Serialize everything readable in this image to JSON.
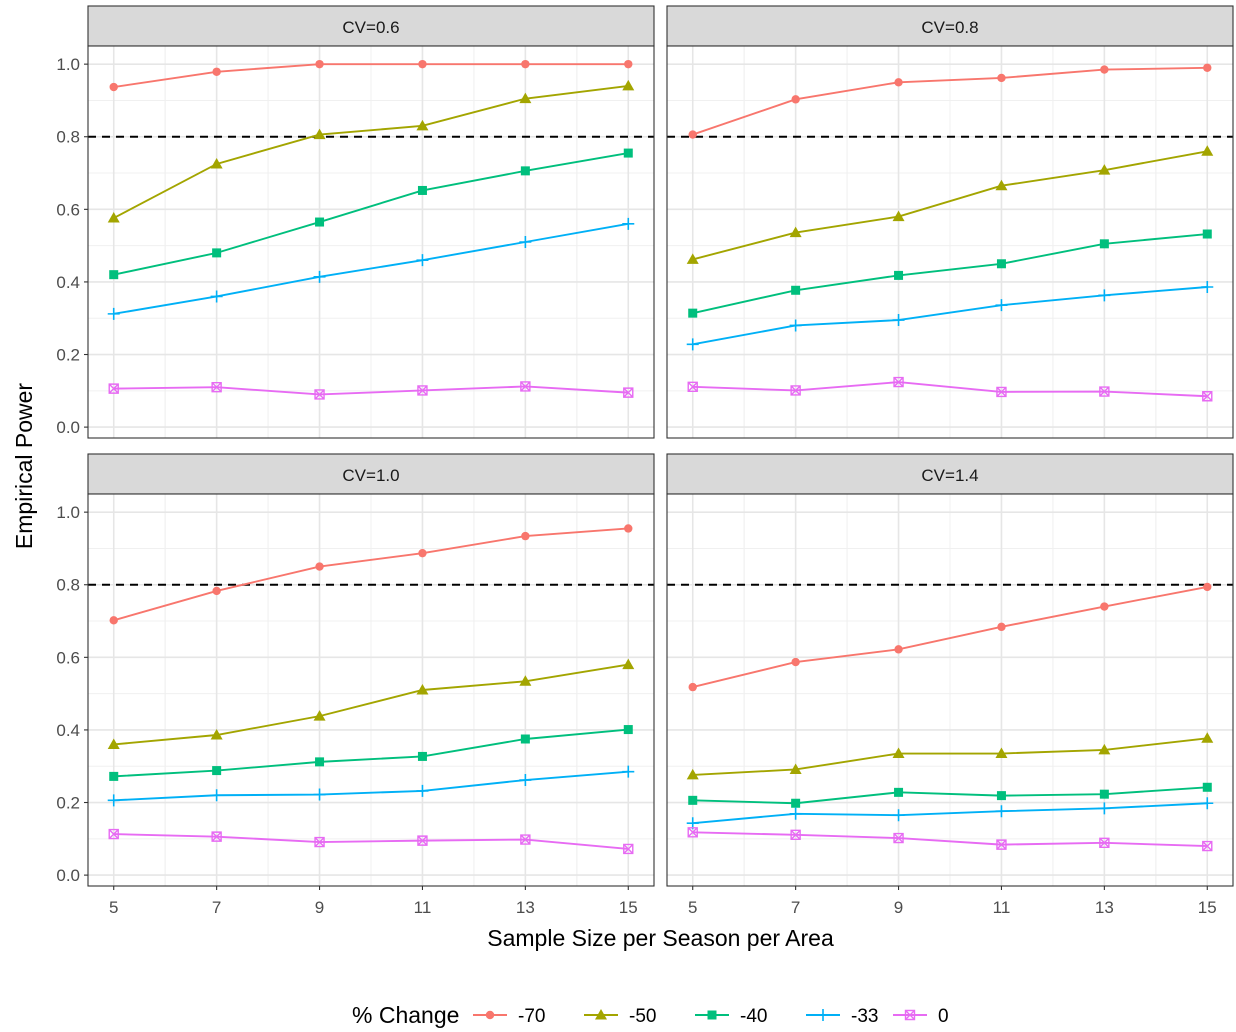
{
  "chart_data": {
    "type": "line",
    "xlabel": "Sample Size per Season per Area",
    "ylabel": "Empirical Power",
    "x": [
      5,
      7,
      9,
      11,
      13,
      15
    ],
    "xticks": [
      "5",
      "7",
      "9",
      "11",
      "13",
      "15"
    ],
    "yticks": [
      "0.0",
      "0.2",
      "0.4",
      "0.6",
      "0.8",
      "1.0"
    ],
    "ylim": [
      -0.03,
      1.05
    ],
    "xlim": [
      4.5,
      15.5
    ],
    "reference_line": {
      "y": 0.8,
      "style": "dashed",
      "color": "#000000"
    },
    "grid": true,
    "legend": {
      "title": "% Change",
      "position": "bottom",
      "entries": [
        {
          "label": "-70",
          "color": "#F8766D",
          "shape": "circle"
        },
        {
          "label": "-50",
          "color": "#A3A500",
          "shape": "triangle"
        },
        {
          "label": "-40",
          "color": "#00BF7D",
          "shape": "square"
        },
        {
          "label": "-33",
          "color": "#00B0F6",
          "shape": "plus"
        },
        {
          "label": "0",
          "color": "#E76BF3",
          "shape": "square-x"
        }
      ]
    },
    "panels": [
      {
        "title": "CV=0.6",
        "series": [
          {
            "name": "-70",
            "values": [
              0.937,
              0.979,
              1.0,
              1.0,
              1.0,
              1.0
            ]
          },
          {
            "name": "-50",
            "values": [
              0.576,
              0.725,
              0.806,
              0.83,
              0.905,
              0.94
            ]
          },
          {
            "name": "-40",
            "values": [
              0.42,
              0.48,
              0.565,
              0.652,
              0.706,
              0.755
            ]
          },
          {
            "name": "-33",
            "values": [
              0.312,
              0.36,
              0.414,
              0.46,
              0.51,
              0.56
            ]
          },
          {
            "name": "0",
            "values": [
              0.106,
              0.11,
              0.09,
              0.101,
              0.112,
              0.095
            ]
          }
        ]
      },
      {
        "title": "CV=0.8",
        "series": [
          {
            "name": "-70",
            "values": [
              0.806,
              0.903,
              0.95,
              0.962,
              0.985,
              0.99
            ]
          },
          {
            "name": "-50",
            "values": [
              0.462,
              0.536,
              0.58,
              0.665,
              0.708,
              0.76
            ]
          },
          {
            "name": "-40",
            "values": [
              0.314,
              0.377,
              0.418,
              0.45,
              0.505,
              0.532
            ]
          },
          {
            "name": "-33",
            "values": [
              0.228,
              0.28,
              0.295,
              0.336,
              0.363,
              0.386
            ]
          },
          {
            "name": "0",
            "values": [
              0.111,
              0.101,
              0.124,
              0.097,
              0.098,
              0.085
            ]
          }
        ]
      },
      {
        "title": "CV=1.0",
        "series": [
          {
            "name": "-70",
            "values": [
              0.702,
              0.783,
              0.85,
              0.887,
              0.934,
              0.955
            ]
          },
          {
            "name": "-50",
            "values": [
              0.36,
              0.386,
              0.438,
              0.51,
              0.534,
              0.58
            ]
          },
          {
            "name": "-40",
            "values": [
              0.272,
              0.288,
              0.312,
              0.327,
              0.375,
              0.401
            ]
          },
          {
            "name": "-33",
            "values": [
              0.206,
              0.22,
              0.222,
              0.232,
              0.262,
              0.285
            ]
          },
          {
            "name": "0",
            "values": [
              0.113,
              0.106,
              0.091,
              0.095,
              0.098,
              0.072
            ]
          }
        ]
      },
      {
        "title": "CV=1.4",
        "series": [
          {
            "name": "-70",
            "values": [
              0.518,
              0.587,
              0.622,
              0.684,
              0.74,
              0.794
            ]
          },
          {
            "name": "-50",
            "values": [
              0.276,
              0.291,
              0.335,
              0.335,
              0.345,
              0.377
            ]
          },
          {
            "name": "-40",
            "values": [
              0.206,
              0.198,
              0.228,
              0.219,
              0.223,
              0.242
            ]
          },
          {
            "name": "-33",
            "values": [
              0.143,
              0.169,
              0.165,
              0.176,
              0.184,
              0.198
            ]
          },
          {
            "name": "0",
            "values": [
              0.118,
              0.111,
              0.102,
              0.084,
              0.089,
              0.08
            ]
          }
        ]
      }
    ]
  }
}
